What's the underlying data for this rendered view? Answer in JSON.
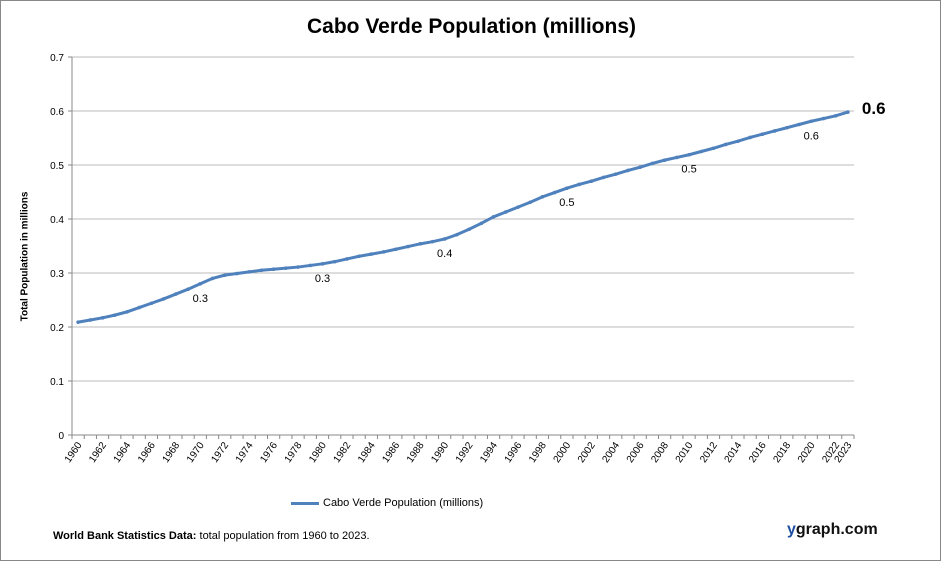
{
  "chart_data": {
    "type": "line",
    "title": "Cabo Verde Population (millions)",
    "ylabel": "Total Population  in millions",
    "xlabel": "",
    "ylim": [
      0,
      0.7
    ],
    "yticks": [
      "0",
      "0.1",
      "0.2",
      "0.3",
      "0.4",
      "0.5",
      "0.6",
      "0.7"
    ],
    "xticks": [
      "1960",
      "1962",
      "1964",
      "1966",
      "1968",
      "1970",
      "1972",
      "1974",
      "1976",
      "1978",
      "1980",
      "1982",
      "1984",
      "1986",
      "1988",
      "1990",
      "1992",
      "1994",
      "1996",
      "1998",
      "2000",
      "2002",
      "2004",
      "2006",
      "2008",
      "2010",
      "2012",
      "2014",
      "2016",
      "2018",
      "2020",
      "2022",
      "2023"
    ],
    "grid": true,
    "legend_position": "bottom",
    "series": [
      {
        "name": "Cabo Verde Population (millions)",
        "color": "#4f81bd",
        "x": [
          1960,
          1961,
          1962,
          1963,
          1964,
          1965,
          1966,
          1967,
          1968,
          1969,
          1970,
          1971,
          1972,
          1973,
          1974,
          1975,
          1976,
          1977,
          1978,
          1979,
          1980,
          1981,
          1982,
          1983,
          1984,
          1985,
          1986,
          1987,
          1988,
          1989,
          1990,
          1991,
          1992,
          1993,
          1994,
          1995,
          1996,
          1997,
          1998,
          1999,
          2000,
          2001,
          2002,
          2003,
          2004,
          2005,
          2006,
          2007,
          2008,
          2009,
          2010,
          2011,
          2012,
          2013,
          2014,
          2015,
          2016,
          2017,
          2018,
          2019,
          2020,
          2021,
          2022,
          2023
        ],
        "values": [
          0.209,
          0.213,
          0.217,
          0.222,
          0.228,
          0.236,
          0.244,
          0.252,
          0.261,
          0.27,
          0.28,
          0.29,
          0.296,
          0.299,
          0.302,
          0.305,
          0.307,
          0.309,
          0.311,
          0.314,
          0.317,
          0.321,
          0.326,
          0.331,
          0.335,
          0.339,
          0.344,
          0.349,
          0.354,
          0.358,
          0.363,
          0.371,
          0.381,
          0.392,
          0.404,
          0.413,
          0.422,
          0.431,
          0.441,
          0.449,
          0.457,
          0.464,
          0.47,
          0.477,
          0.483,
          0.49,
          0.496,
          0.503,
          0.509,
          0.514,
          0.519,
          0.525,
          0.531,
          0.538,
          0.544,
          0.551,
          0.557,
          0.563,
          0.569,
          0.575,
          0.581,
          0.586,
          0.591,
          0.598
        ]
      }
    ],
    "data_labels": [
      {
        "x": 1970,
        "text": "0.3"
      },
      {
        "x": 1980,
        "text": "0.3"
      },
      {
        "x": 1990,
        "text": "0.4"
      },
      {
        "x": 2000,
        "text": "0.5"
      },
      {
        "x": 2010,
        "text": "0.5"
      },
      {
        "x": 2020,
        "text": "0.6"
      }
    ],
    "end_label": {
      "x": 2023,
      "text": "0.6"
    }
  },
  "footer": {
    "source_bold": "World Bank Statistics Data:",
    "source_text": " total population from 1960 to 2023.",
    "brand_y": "y",
    "brand_rest": "graph.com"
  }
}
